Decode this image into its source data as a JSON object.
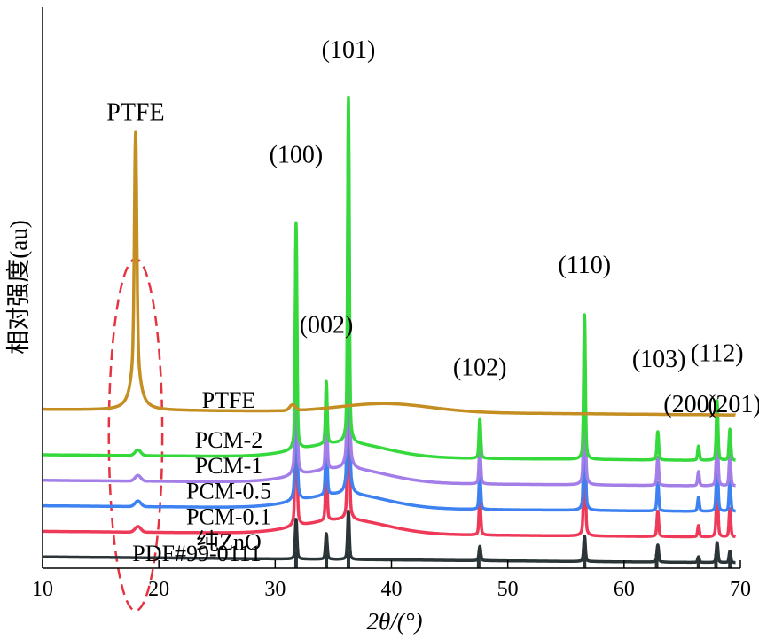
{
  "chart_data": {
    "type": "line",
    "xlabel": "2θ/(°)",
    "ylabel": "相对强度(au)",
    "xlim": [
      10,
      70
    ],
    "x_ticks": [
      "10",
      "20",
      "30",
      "40",
      "50",
      "60",
      "70"
    ],
    "grid": false,
    "y_ticks": [],
    "series": [
      {
        "name": "PTFE",
        "color": "#c48e22",
        "baseline": 0.54,
        "ptfe_peak": 0.98,
        "peaks": []
      },
      {
        "name": "PCM-2",
        "color": "#36d93c",
        "baseline": 0.4,
        "ptfe_peak": 0.02,
        "peaks": [
          [
            31.8,
            0.8
          ],
          [
            34.4,
            0.22
          ],
          [
            36.3,
            1.22
          ],
          [
            47.6,
            0.14
          ],
          [
            56.6,
            0.51
          ],
          [
            62.9,
            0.1
          ],
          [
            66.4,
            0.05
          ],
          [
            68.0,
            0.21
          ],
          [
            69.1,
            0.11
          ]
        ]
      },
      {
        "name": "PCM-1",
        "color": "#a47ee8",
        "baseline": 0.31,
        "ptfe_peak": 0.02,
        "peaks": [
          [
            31.8,
            0.82
          ],
          [
            34.4,
            0.22
          ],
          [
            36.3,
            1.2
          ],
          [
            47.6,
            0.13
          ],
          [
            56.6,
            0.48
          ],
          [
            62.9,
            0.1
          ],
          [
            66.4,
            0.05
          ],
          [
            68.0,
            0.21
          ],
          [
            69.1,
            0.11
          ]
        ]
      },
      {
        "name": "PCM-0.5",
        "color": "#3d82f0",
        "baseline": 0.22,
        "ptfe_peak": 0.02,
        "peaks": [
          [
            31.8,
            0.74
          ],
          [
            34.4,
            0.22
          ],
          [
            36.3,
            1.18
          ],
          [
            47.6,
            0.13
          ],
          [
            56.6,
            0.44
          ],
          [
            62.9,
            0.1
          ],
          [
            66.4,
            0.05
          ],
          [
            68.0,
            0.2
          ],
          [
            69.1,
            0.11
          ]
        ]
      },
      {
        "name": "PCM-0.1",
        "color": "#ee3a58",
        "baseline": 0.13,
        "ptfe_peak": 0.02,
        "peaks": [
          [
            31.8,
            0.62
          ],
          [
            34.4,
            0.2
          ],
          [
            36.3,
            0.7
          ],
          [
            47.6,
            0.13
          ],
          [
            56.6,
            0.39
          ],
          [
            62.9,
            0.09
          ],
          [
            66.4,
            0.04
          ],
          [
            68.0,
            0.2
          ],
          [
            69.1,
            0.1
          ]
        ]
      },
      {
        "name": "纯ZnO",
        "color": "#2b3538",
        "baseline": 0.04,
        "ptfe_peak": 0.0,
        "peaks": [
          [
            31.8,
            0.14
          ],
          [
            34.4,
            0.09
          ],
          [
            36.3,
            0.17
          ],
          [
            47.6,
            0.05
          ],
          [
            56.6,
            0.09
          ],
          [
            62.9,
            0.06
          ],
          [
            66.4,
            0.02
          ],
          [
            68.0,
            0.07
          ],
          [
            69.1,
            0.04
          ]
        ]
      }
    ],
    "reference": {
      "name": "PDF#99-0111",
      "color": "#2b3538",
      "sticks": [
        [
          31.8,
          0.06
        ],
        [
          34.4,
          0.05
        ],
        [
          36.3,
          0.06
        ],
        [
          47.5,
          0.04
        ],
        [
          56.6,
          0.05
        ],
        [
          62.8,
          0.05
        ],
        [
          66.4,
          0.03
        ],
        [
          67.9,
          0.05
        ],
        [
          69.1,
          0.04
        ]
      ]
    },
    "annotations": [
      {
        "text": "PTFE",
        "x": 18.0,
        "y": 1.58
      },
      {
        "text": "(100)",
        "x": 31.8,
        "y": 1.43
      },
      {
        "text": "(101)",
        "x": 36.3,
        "y": 1.8
      },
      {
        "text": "(002)",
        "x": 34.4,
        "y": 0.83
      },
      {
        "text": "(102)",
        "x": 47.6,
        "y": 0.68
      },
      {
        "text": "(110)",
        "x": 56.6,
        "y": 1.04
      },
      {
        "text": "(103)",
        "x": 63.0,
        "y": 0.71
      },
      {
        "text": "(112)",
        "x": 68.0,
        "y": 0.73
      },
      {
        "text": "(200)",
        "x": 65.7,
        "y": 0.55
      },
      {
        "text": "(201)",
        "x": 69.5,
        "y": 0.55
      }
    ],
    "highlight": {
      "shape": "dashed-ellipse",
      "color": "#e5333f",
      "cx": 18.0,
      "cy": 0.47,
      "rx": 2.3,
      "ry": 0.62
    }
  }
}
